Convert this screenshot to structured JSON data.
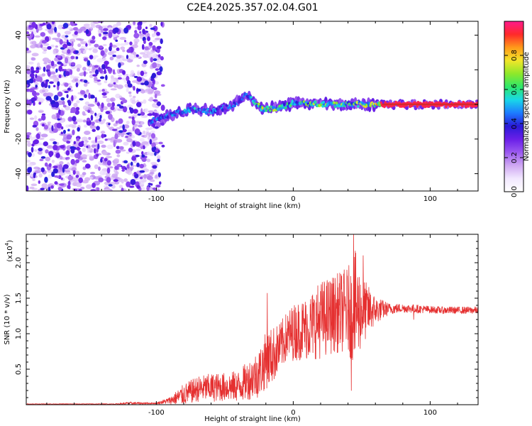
{
  "colors": {
    "snr_line": "#e53030",
    "frame": "#000000",
    "ridge": "#d62a2a"
  },
  "colormap": [
    "#ffffff",
    "#f2e8ff",
    "#cfa8f2",
    "#9b59f0",
    "#6a1fe8",
    "#2a1ad8",
    "#1d7bff",
    "#19d7e8",
    "#2ee86a",
    "#8ee82a",
    "#f2e62a",
    "#ff9a1a",
    "#ff2a2a",
    "#ff1a8c"
  ],
  "chart_data": [
    {
      "type": "heatmap",
      "title": "C2E4.2025.357.02.04.G01",
      "xlabel": "Height of straight line (km)",
      "ylabel": "Frequency (Hz)",
      "xlim": [
        -195,
        135
      ],
      "ylim": [
        -50,
        48
      ],
      "x_ticks": [
        -100,
        0,
        100
      ],
      "x_tick_labels": [
        "-100",
        "0",
        "100"
      ],
      "y_ticks": [
        -40,
        -20,
        0,
        20,
        40
      ],
      "y_tick_labels": [
        "-40",
        "-20",
        "0",
        "20",
        "40"
      ],
      "colorbar": {
        "label": "Normalized spectral amplitude",
        "range": [
          0,
          1
        ],
        "ticks": [
          0,
          0.2,
          0.4,
          0.6,
          0.8
        ],
        "tick_labels": [
          "0.0",
          "0.2",
          "0.4",
          "0.6",
          "0.8"
        ]
      },
      "description_points": {
        "noise_region_x": [
          -195,
          -98
        ],
        "ridge": {
          "x": [
            -105,
            -90,
            -75,
            -60,
            -45,
            -35,
            -30,
            -22,
            -10,
            0,
            20,
            40,
            60,
            65,
            100,
            135
          ],
          "freq": [
            -10,
            -6,
            -3,
            -4,
            -1,
            5,
            3,
            -3,
            -2,
            1,
            0,
            0,
            0,
            0,
            0,
            0
          ],
          "amplitude": [
            0.45,
            0.5,
            0.55,
            0.5,
            0.5,
            0.45,
            0.55,
            0.8,
            0.7,
            0.6,
            0.75,
            0.7,
            0.8,
            0.95,
            0.95,
            0.95
          ]
        }
      }
    },
    {
      "type": "line",
      "title": "",
      "xlabel": "Height of straight line (km)",
      "ylabel": "SNR (10 * v/v)",
      "y_scale_label": "(x10",
      "y_scale_exponent": "4",
      "xlim": [
        -195,
        135
      ],
      "ylim": [
        0,
        2.4
      ],
      "x_ticks": [
        -100,
        0,
        100
      ],
      "x_tick_labels": [
        "-100",
        "0",
        "100"
      ],
      "y_ticks": [
        0.5,
        1.0,
        1.5,
        2.0
      ],
      "y_tick_labels": [
        "0.5",
        "1.0",
        "1.5",
        "2.0"
      ],
      "series": [
        {
          "name": "SNR",
          "envelope": {
            "x": [
              -195,
              -130,
              -120,
              -100,
              -90,
              -80,
              -70,
              -60,
              -50,
              -40,
              -30,
              -25,
              -20,
              -15,
              -10,
              -5,
              0,
              10,
              20,
              30,
              40,
              45,
              50,
              60,
              70,
              80,
              90,
              100,
              110,
              120,
              135
            ],
            "mean": [
              0.01,
              0.01,
              0.02,
              0.02,
              0.06,
              0.14,
              0.22,
              0.24,
              0.25,
              0.26,
              0.38,
              0.45,
              0.62,
              0.7,
              0.8,
              0.95,
              1.02,
              1.08,
              1.2,
              1.28,
              1.34,
              1.34,
              1.32,
              1.33,
              1.35,
              1.36,
              1.35,
              1.34,
              1.33,
              1.33,
              1.33
            ],
            "amp": [
              0.005,
              0.005,
              0.02,
              0.01,
              0.05,
              0.15,
              0.18,
              0.2,
              0.2,
              0.22,
              0.3,
              0.35,
              0.4,
              0.4,
              0.35,
              0.35,
              0.4,
              0.45,
              0.55,
              0.55,
              0.6,
              0.85,
              0.5,
              0.2,
              0.08,
              0.06,
              0.06,
              0.05,
              0.05,
              0.05,
              0.05
            ]
          },
          "peaks": [
            {
              "x": 44,
              "y": 2.4
            },
            {
              "x": 42.5,
              "y": 0.2
            },
            {
              "x": -19,
              "y": 1.57
            },
            {
              "x": 51,
              "y": 2.1
            },
            {
              "x": 88,
              "y": 1.2
            }
          ]
        }
      ]
    }
  ]
}
